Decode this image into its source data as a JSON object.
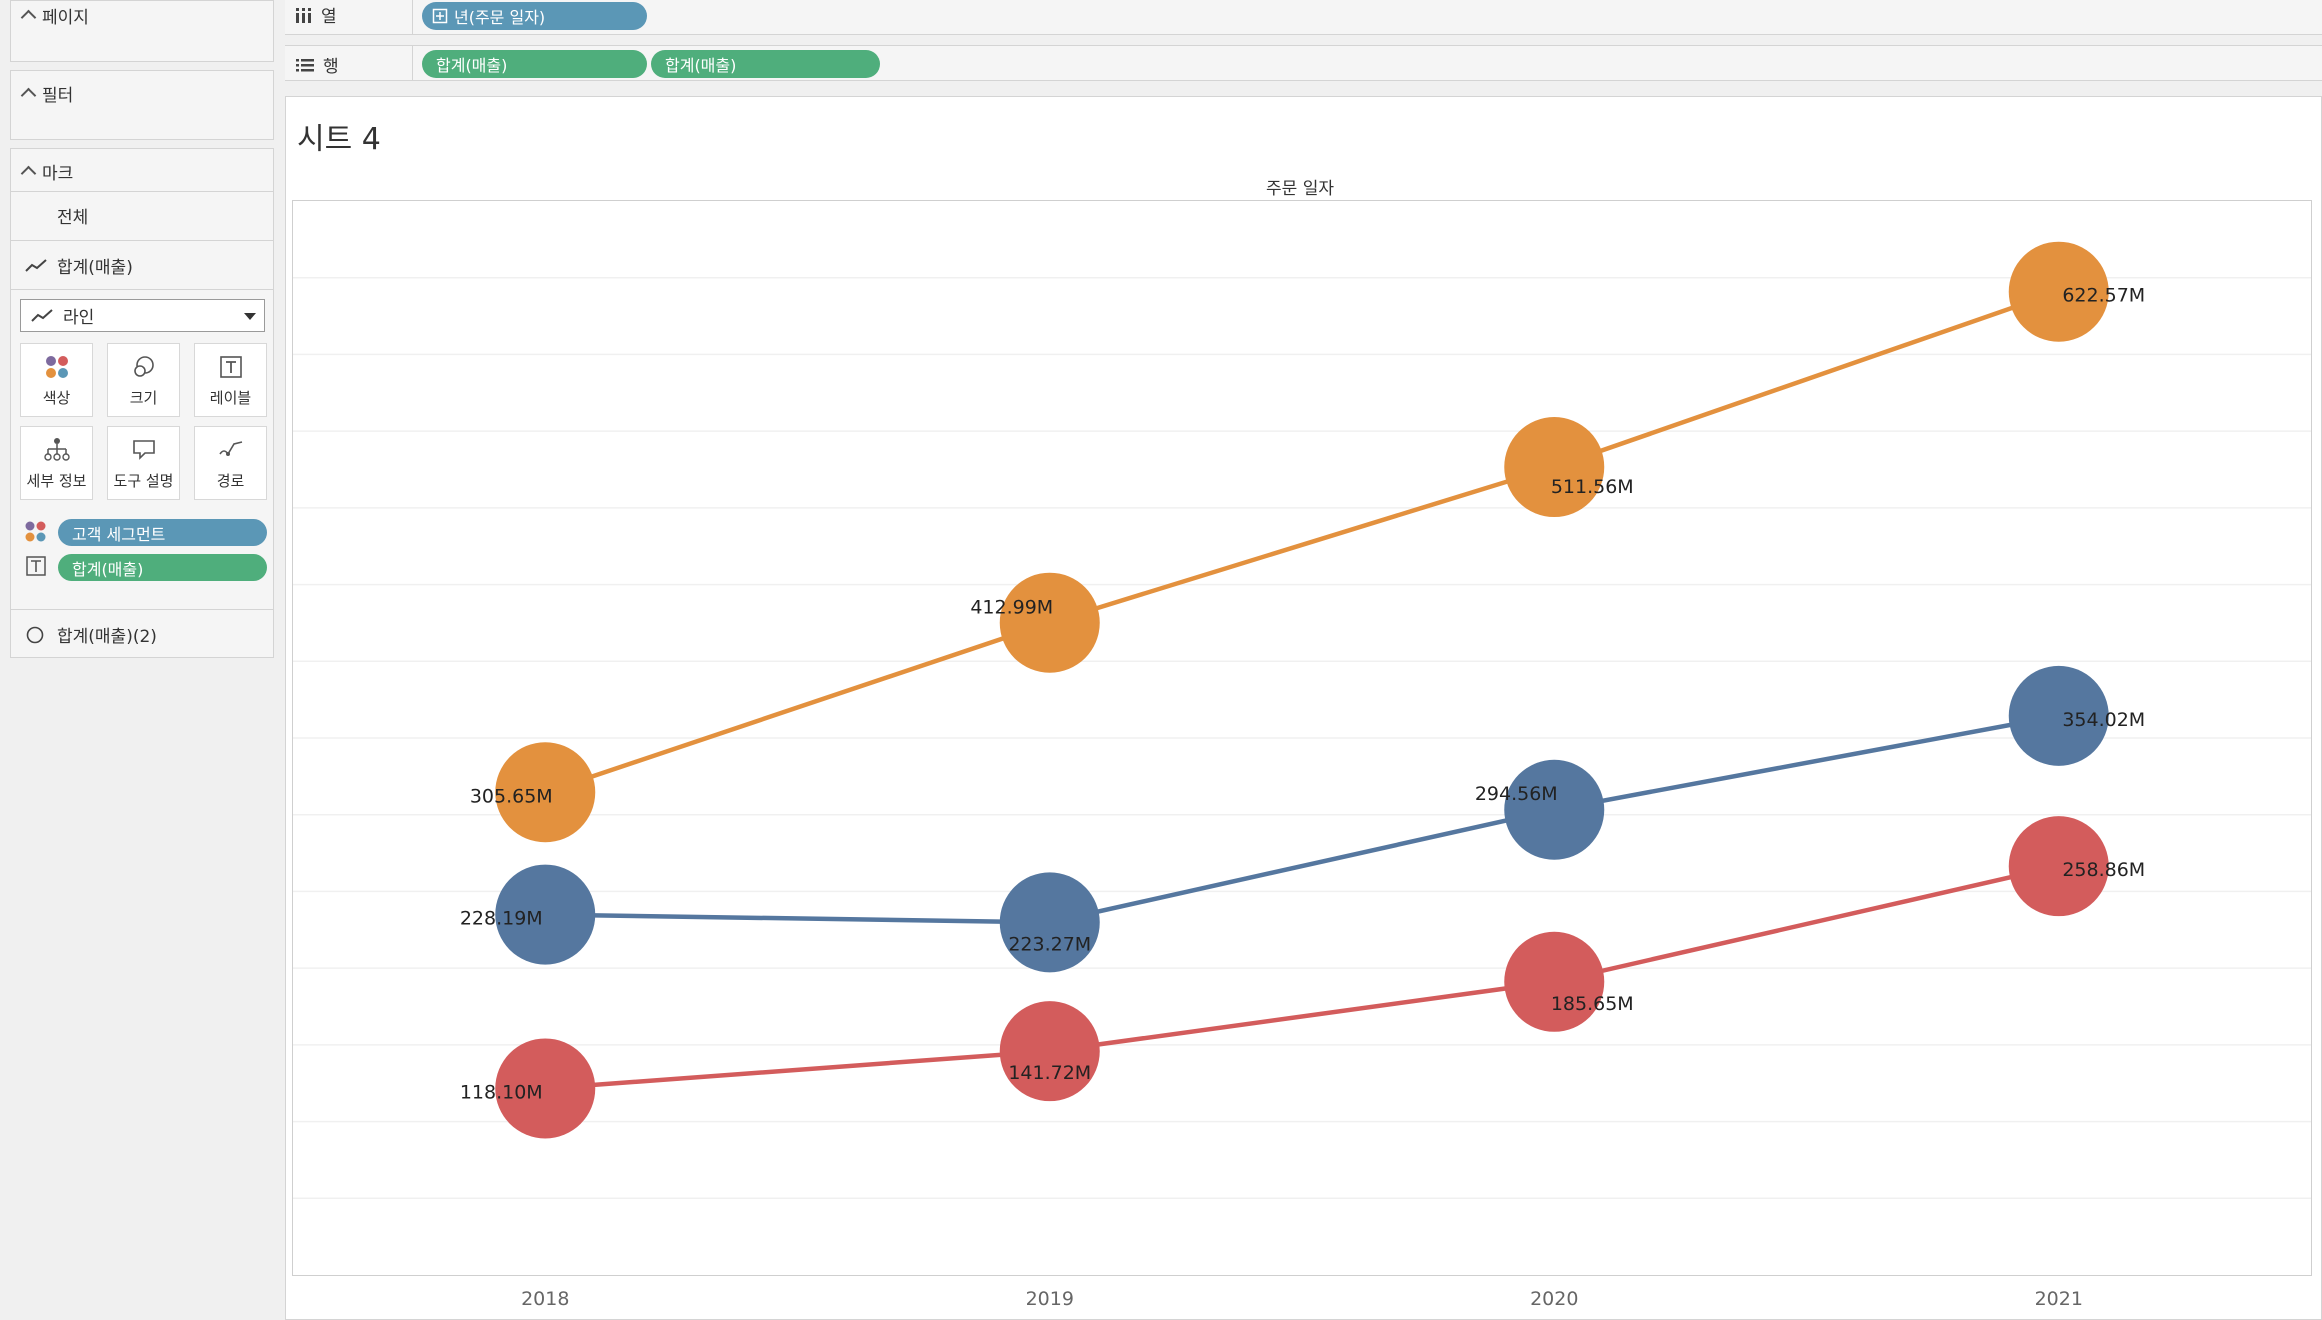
{
  "sidebar": {
    "pages_label": "페이지",
    "filters_label": "필터",
    "marks_label": "마크",
    "all_label": "전체",
    "measure1_label": "합계(매출)",
    "mark_type": "라인",
    "tiles": {
      "color": "색상",
      "size": "크기",
      "label": "레이블",
      "detail": "세부 정보",
      "tooltip": "도구 설명",
      "path": "경로"
    },
    "color_pill": "고객 세그먼트",
    "label_pill": "합계(매출)",
    "measure2_label": "합계(매출)(2)"
  },
  "shelves": {
    "columns_label": "열",
    "columns_pill": "년(주문 일자)",
    "rows_label": "행",
    "rows_pill1": "합계(매출)",
    "rows_pill2": "합계(매출)"
  },
  "sheet": {
    "title": "시트 4",
    "column_header": "주문 일자"
  },
  "chart_data": {
    "type": "line",
    "x": [
      "2018",
      "2019",
      "2020",
      "2021"
    ],
    "xlabel": "주문 일자",
    "ylim": [
      0,
      680
    ],
    "grid": true,
    "legend": "none",
    "series": [
      {
        "color": "#e3913e",
        "values": [
          305.65,
          412.99,
          511.56,
          622.57
        ],
        "labels": [
          "305.65M",
          "412.99M",
          "511.56M",
          "622.57M"
        ]
      },
      {
        "color": "#55779f",
        "values": [
          228.19,
          223.27,
          294.56,
          354.02
        ],
        "labels": [
          "228.19M",
          "223.27M",
          "294.56M",
          "354.02M"
        ]
      },
      {
        "color": "#d35c5c",
        "values": [
          118.1,
          141.72,
          185.65,
          258.86
        ],
        "labels": [
          "118.10M",
          "141.72M",
          "185.65M",
          "258.86M"
        ]
      }
    ]
  }
}
